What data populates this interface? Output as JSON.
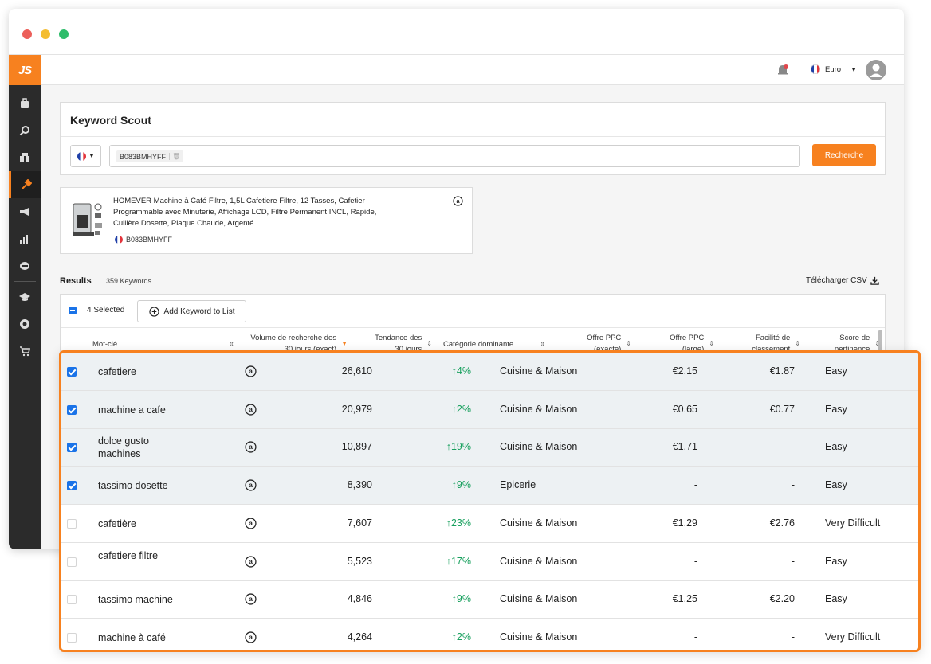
{
  "app": {
    "logo": "JS"
  },
  "topbar": {
    "currency": "Euro"
  },
  "keyword_scout": {
    "title": "Keyword Scout",
    "asin_chip": "B083BMHYFF",
    "search_label": "Recherche"
  },
  "product": {
    "title": "HOMEVER Machine à Café Filtre, 1,5L Cafetiere Filtre, 12 Tasses, Cafetier Programmable avec Minuterie, Affichage LCD, Filtre Permanent INCL, Rapide, Cuillère Dosette, Plaque Chaude, Argenté",
    "asin": "B083BMHYFF"
  },
  "results": {
    "label": "Results",
    "count": "359 Keywords",
    "csv_label": "Télécharger CSV",
    "selected": "4 Selected",
    "add_keyword": "Add Keyword to List"
  },
  "columns": {
    "keyword": "Mot-clé",
    "volume": "Volume de recherche des 30 jours (exact)",
    "trend": "Tendance des 30 jours",
    "category": "Catégorie dominante",
    "ppc_exact": "Offre PPC (exacte)",
    "ppc_broad": "Offre PPC (large)",
    "ease": "Facilité de classement",
    "relevance": "Score de pertinence"
  },
  "rows": [
    {
      "checked": true,
      "keyword": "cafetiere",
      "volume": "26,610",
      "trend": "↑4%",
      "category": "Cuisine & Maison",
      "ppc_exact": "€2.15",
      "ppc_broad": "€1.87",
      "ease": "Easy"
    },
    {
      "checked": true,
      "keyword": "machine a cafe",
      "volume": "20,979",
      "trend": "↑2%",
      "category": "Cuisine & Maison",
      "ppc_exact": "€0.65",
      "ppc_broad": "€0.77",
      "ease": "Easy"
    },
    {
      "checked": true,
      "keyword": "dolce gusto machines",
      "volume": "10,897",
      "trend": "↑19%",
      "category": "Cuisine & Maison",
      "ppc_exact": "€1.71",
      "ppc_broad": "-",
      "ease": "Easy"
    },
    {
      "checked": true,
      "keyword": "tassimo dosette",
      "volume": "8,390",
      "trend": "↑9%",
      "category": "Epicerie",
      "ppc_exact": "-",
      "ppc_broad": "-",
      "ease": "Easy"
    },
    {
      "checked": false,
      "keyword": "cafetière",
      "volume": "7,607",
      "trend": "↑23%",
      "category": "Cuisine & Maison",
      "ppc_exact": "€1.29",
      "ppc_broad": "€2.76",
      "ease": "Very Difficult"
    },
    {
      "checked": false,
      "keyword": "cafetiere filtre",
      "volume": "5,523",
      "trend": "↑17%",
      "category": "Cuisine & Maison",
      "ppc_exact": "-",
      "ppc_broad": "-",
      "ease": "Easy"
    },
    {
      "checked": false,
      "keyword": "tassimo machine",
      "volume": "4,846",
      "trend": "↑9%",
      "category": "Cuisine & Maison",
      "ppc_exact": "€1.25",
      "ppc_broad": "€2.20",
      "ease": "Easy"
    },
    {
      "checked": false,
      "keyword": "machine à café",
      "volume": "4,264",
      "trend": "↑2%",
      "category": "Cuisine & Maison",
      "ppc_exact": "-",
      "ppc_broad": "-",
      "ease": "Very Difficult"
    }
  ],
  "colors": {
    "accent": "#f7811f",
    "sidebar": "#2b2b2b",
    "trend_up": "#18a05e",
    "check": "#1a73e8"
  }
}
